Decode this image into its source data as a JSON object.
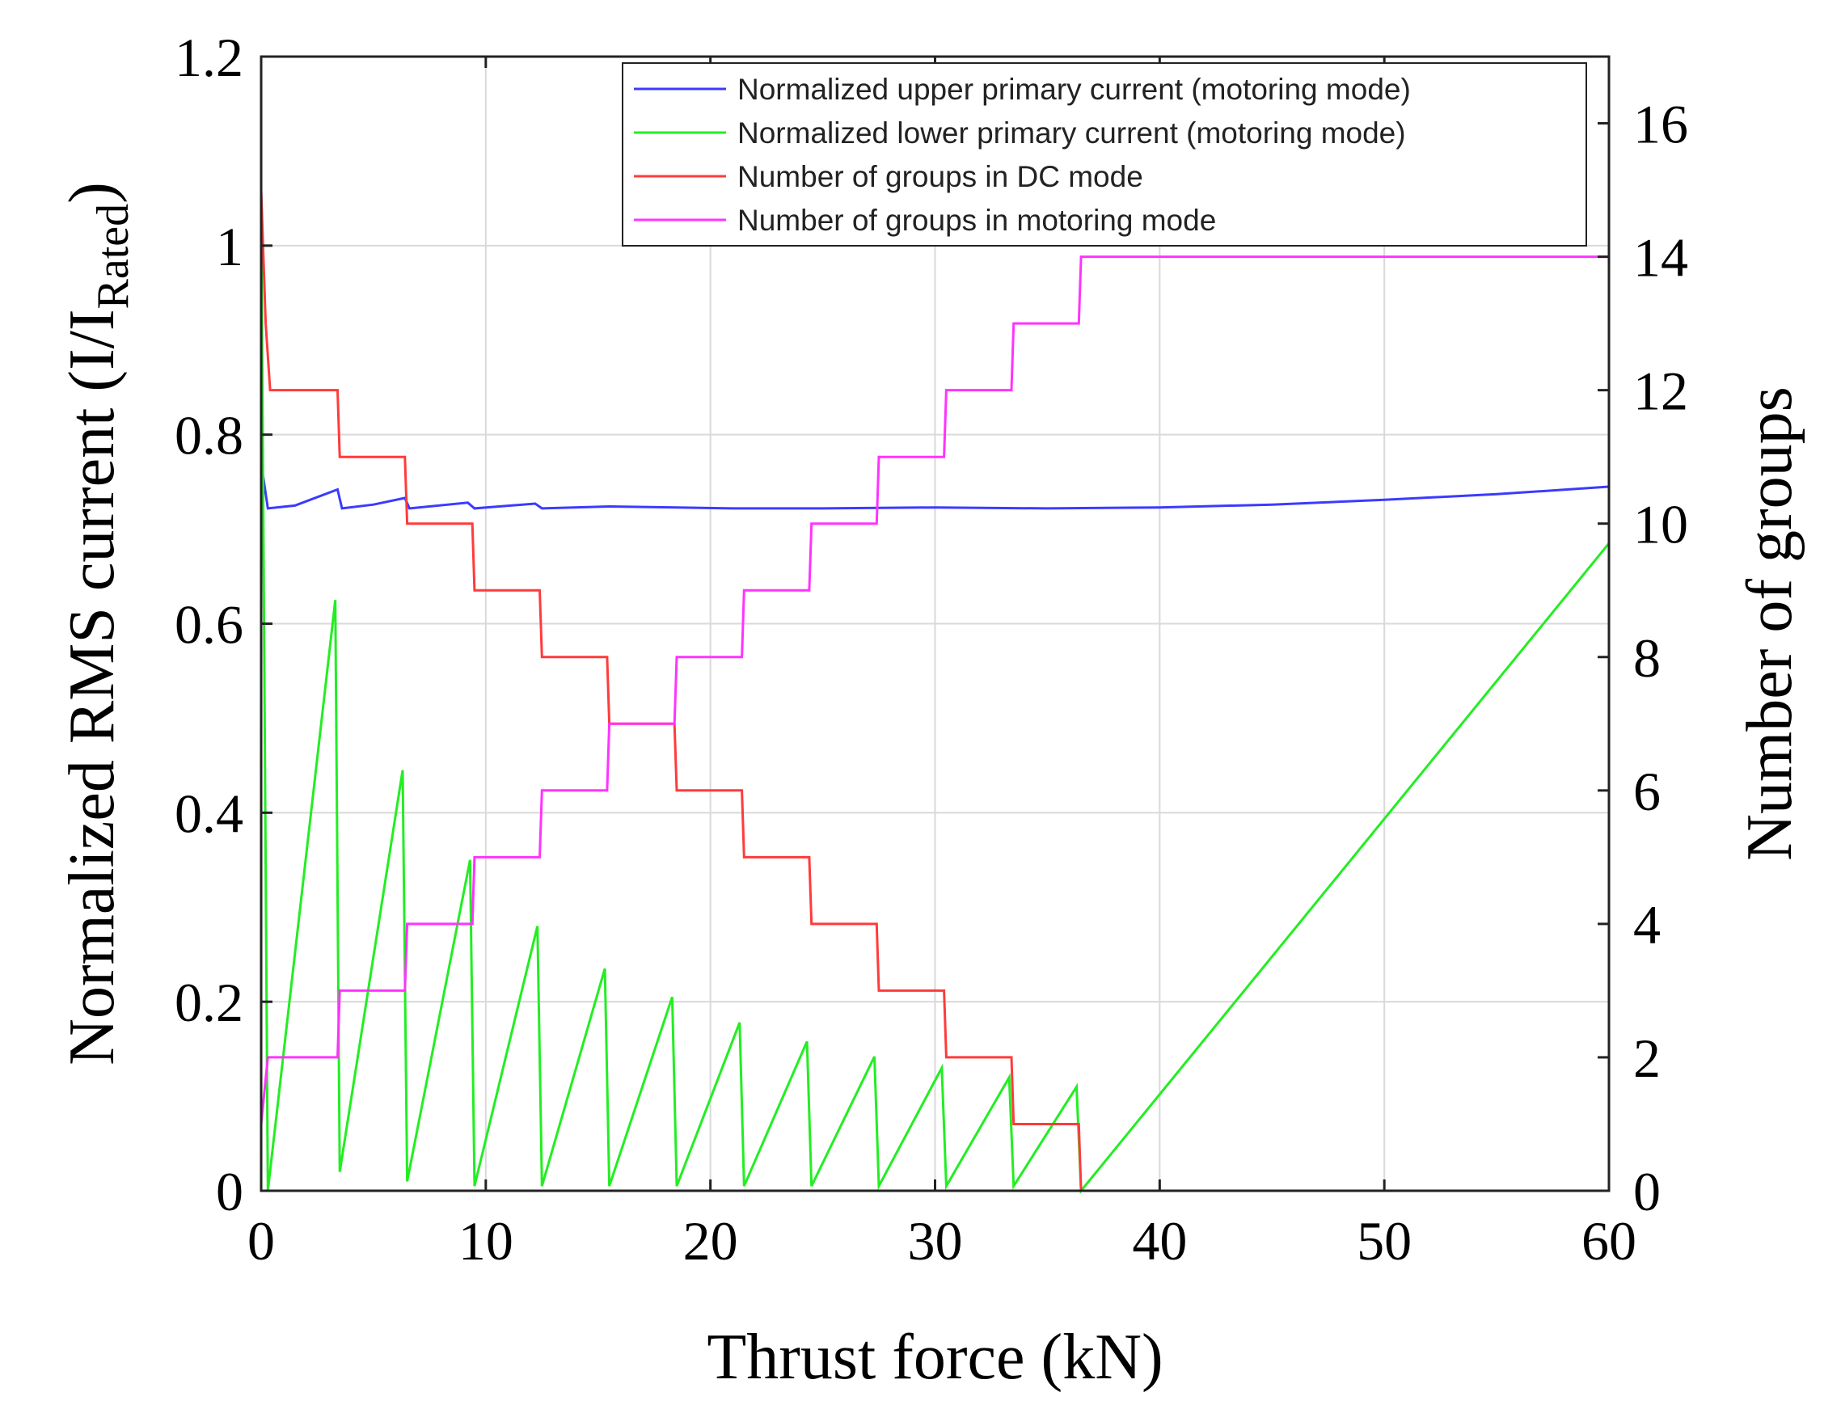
{
  "chart_data": {
    "type": "line",
    "title": "",
    "xlabel": "Thrust force (kN)",
    "ylabel_left_prefix": "Normalized RMS current (I/I",
    "ylabel_left_sub": "Rated",
    "ylabel_left_suffix": ")",
    "ylabel_right": "Number of groups",
    "xlim": [
      0,
      60
    ],
    "ylim_left": [
      0,
      1.2
    ],
    "ylim_right": [
      0,
      17
    ],
    "x_ticks": [
      0,
      10,
      20,
      30,
      40,
      50,
      60
    ],
    "x_tick_labels": [
      "0",
      "10",
      "20",
      "30",
      "40",
      "50",
      "60"
    ],
    "y_left_ticks": [
      0,
      0.2,
      0.4,
      0.6,
      0.8,
      1,
      1.2
    ],
    "y_left_tick_labels": [
      "0",
      "0.2",
      "0.4",
      "0.6",
      "0.8",
      "1",
      "1.2"
    ],
    "y_right_ticks": [
      0,
      2,
      4,
      6,
      8,
      10,
      12,
      14,
      16
    ],
    "y_right_tick_labels": [
      "0",
      "2",
      "4",
      "6",
      "8",
      "10",
      "12",
      "14",
      "16"
    ],
    "grid": true,
    "legend_position": "top-right",
    "series": [
      {
        "name": "Normalized upper primary current (motoring mode)",
        "axis": "left",
        "color": "#3b3bff",
        "points": [
          [
            0,
            0.77
          ],
          [
            0.3,
            0.722
          ],
          [
            1.5,
            0.725
          ],
          [
            3.4,
            0.742
          ],
          [
            3.6,
            0.722
          ],
          [
            5,
            0.726
          ],
          [
            6.4,
            0.733
          ],
          [
            6.6,
            0.722
          ],
          [
            9.2,
            0.728
          ],
          [
            9.5,
            0.722
          ],
          [
            12.2,
            0.727
          ],
          [
            12.5,
            0.722
          ],
          [
            15.5,
            0.724
          ],
          [
            18.5,
            0.723
          ],
          [
            21,
            0.722
          ],
          [
            25,
            0.722
          ],
          [
            30,
            0.723
          ],
          [
            35,
            0.722
          ],
          [
            40,
            0.723
          ],
          [
            45,
            0.726
          ],
          [
            50,
            0.731
          ],
          [
            55,
            0.737
          ],
          [
            60,
            0.745
          ]
        ]
      },
      {
        "name": "Normalized lower primary current (motoring mode)",
        "axis": "left",
        "color": "#22ee22",
        "points": [
          [
            0,
            1.05
          ],
          [
            0.3,
            0
          ],
          [
            3.3,
            0.625
          ],
          [
            3.5,
            0.02
          ],
          [
            6.3,
            0.445
          ],
          [
            6.5,
            0.01
          ],
          [
            9.3,
            0.35
          ],
          [
            9.5,
            0.005
          ],
          [
            12.3,
            0.28
          ],
          [
            12.5,
            0.005
          ],
          [
            15.3,
            0.235
          ],
          [
            15.5,
            0.005
          ],
          [
            18.3,
            0.205
          ],
          [
            18.5,
            0.005
          ],
          [
            21.3,
            0.178
          ],
          [
            21.5,
            0.005
          ],
          [
            24.3,
            0.158
          ],
          [
            24.5,
            0.005
          ],
          [
            27.3,
            0.142
          ],
          [
            27.5,
            0.005
          ],
          [
            30.3,
            0.13
          ],
          [
            30.5,
            0.005
          ],
          [
            33.3,
            0.12
          ],
          [
            33.5,
            0.005
          ],
          [
            36.3,
            0.11
          ],
          [
            36.5,
            0
          ],
          [
            60,
            0.685
          ]
        ]
      },
      {
        "name": "Number of groups in DC mode",
        "axis": "right",
        "color": "#ff3b3b",
        "points": [
          [
            0,
            15
          ],
          [
            0.2,
            13
          ],
          [
            0.4,
            12
          ],
          [
            3.4,
            12
          ],
          [
            3.5,
            11
          ],
          [
            6.4,
            11
          ],
          [
            6.5,
            10
          ],
          [
            9.4,
            10
          ],
          [
            9.5,
            9
          ],
          [
            12.4,
            9
          ],
          [
            12.5,
            8
          ],
          [
            15.4,
            8
          ],
          [
            15.5,
            7
          ],
          [
            18.4,
            7
          ],
          [
            18.5,
            6
          ],
          [
            21.4,
            6
          ],
          [
            21.5,
            5
          ],
          [
            24.4,
            5
          ],
          [
            24.5,
            4
          ],
          [
            27.4,
            4
          ],
          [
            27.5,
            3
          ],
          [
            30.4,
            3
          ],
          [
            30.5,
            2
          ],
          [
            33.4,
            2
          ],
          [
            33.5,
            1
          ],
          [
            36.4,
            1
          ],
          [
            36.5,
            0
          ],
          [
            60,
            0
          ]
        ]
      },
      {
        "name": "Number of groups in motoring mode",
        "axis": "right",
        "color": "#ff33ff",
        "points": [
          [
            0,
            1
          ],
          [
            0.3,
            2
          ],
          [
            3.4,
            2
          ],
          [
            3.5,
            3
          ],
          [
            6.4,
            3
          ],
          [
            6.5,
            4
          ],
          [
            9.4,
            4
          ],
          [
            9.5,
            5
          ],
          [
            12.4,
            5
          ],
          [
            12.5,
            6
          ],
          [
            15.4,
            6
          ],
          [
            15.5,
            7
          ],
          [
            18.4,
            7
          ],
          [
            18.5,
            8
          ],
          [
            21.4,
            8
          ],
          [
            21.5,
            9
          ],
          [
            24.4,
            9
          ],
          [
            24.5,
            10
          ],
          [
            27.4,
            10
          ],
          [
            27.5,
            11
          ],
          [
            30.4,
            11
          ],
          [
            30.5,
            12
          ],
          [
            33.4,
            12
          ],
          [
            33.5,
            13
          ],
          [
            36.4,
            13
          ],
          [
            36.5,
            14
          ],
          [
            60,
            14
          ]
        ]
      }
    ]
  }
}
